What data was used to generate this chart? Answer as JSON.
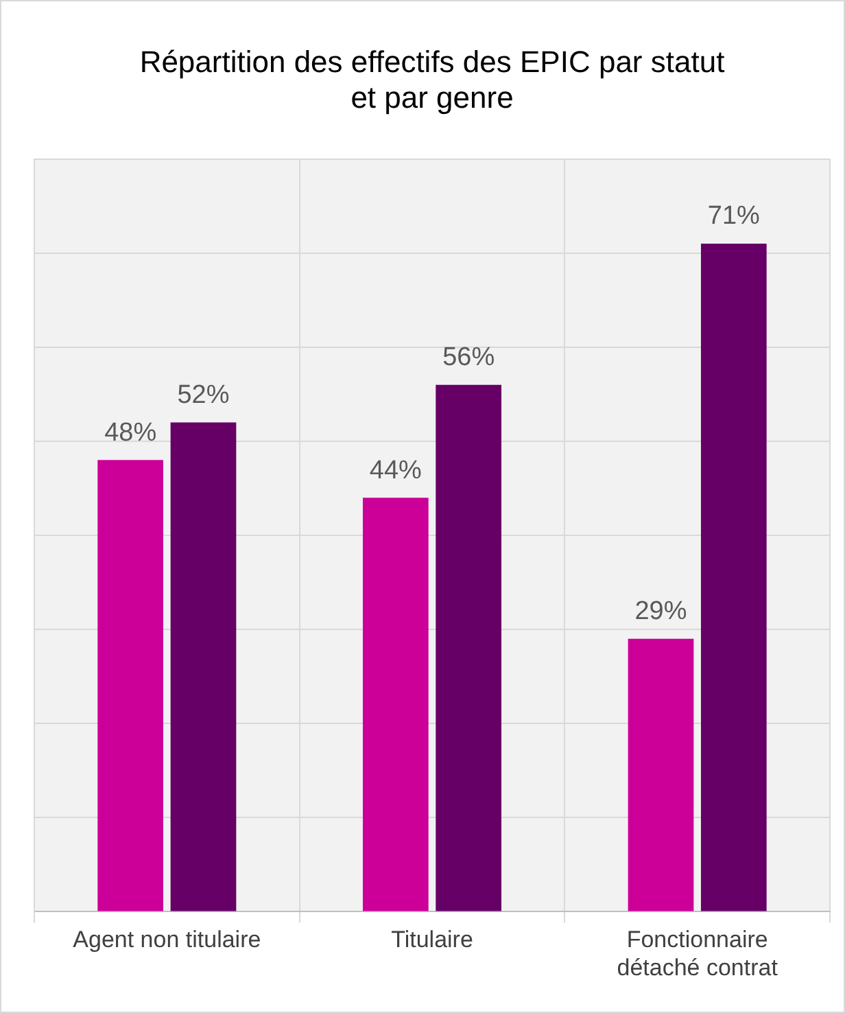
{
  "chart_data": {
    "type": "bar",
    "title": "Répartition des effectifs des EPIC par statut et par genre",
    "categories": [
      "Agent non titulaire",
      "Titulaire",
      "Fonctionnaire détaché contrat"
    ],
    "series": [
      {
        "color": "#cc0099",
        "values": [
          48,
          44,
          29
        ],
        "value_labels": [
          "48%",
          "44%",
          "29%"
        ]
      },
      {
        "color": "#660066",
        "values": [
          52,
          56,
          71
        ],
        "value_labels": [
          "52%",
          "56%",
          "71%"
        ]
      }
    ],
    "tick_labels": "x",
    "grid": true,
    "legend": false
  }
}
